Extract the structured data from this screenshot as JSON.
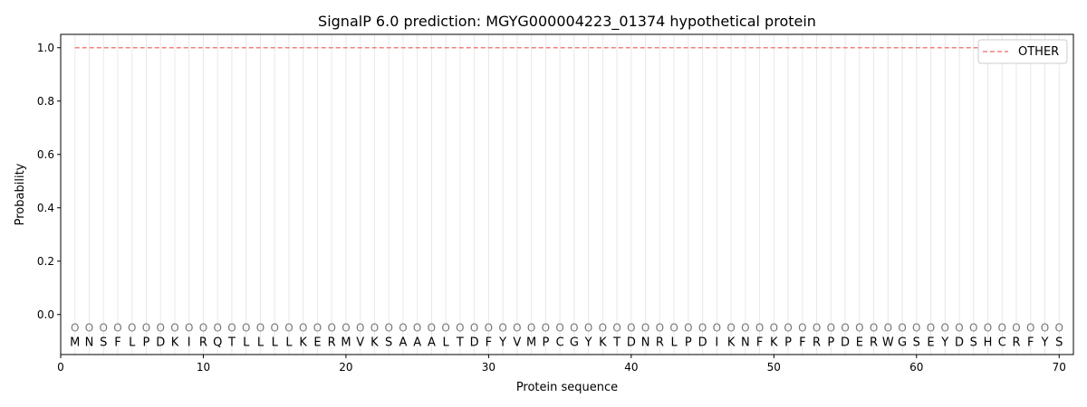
{
  "chart_data": {
    "type": "line",
    "title": "SignalP 6.0 prediction: MGYG000004223_01374 hypothetical protein",
    "xlabel": "Protein sequence",
    "ylabel": "Probability",
    "xlim": [
      0,
      71
    ],
    "ylim": [
      -0.15,
      1.05
    ],
    "xticks": [
      0,
      10,
      20,
      30,
      40,
      50,
      60,
      70
    ],
    "yticks": [
      0.0,
      0.2,
      0.4,
      0.6,
      0.8,
      1.0
    ],
    "ytick_labels": [
      "0.0",
      "0.2",
      "0.4",
      "0.6",
      "0.8",
      "1.0"
    ],
    "grid": "vertical lines at each residue",
    "legend_placement": "top-right",
    "sequence": "MNSFLPDKIRQTLLLLKERMVKSAAALTDFYVMPCGYKTDNRLPDIKNFKPFRPDERWGSEYDSHCRFYS",
    "residue_label": "O",
    "residue_label_y": -0.05,
    "series": [
      {
        "name": "OTHER",
        "color": "#f08080",
        "style": "dashed",
        "x_start": 1,
        "x_end": 70,
        "value": 1.0
      }
    ]
  }
}
